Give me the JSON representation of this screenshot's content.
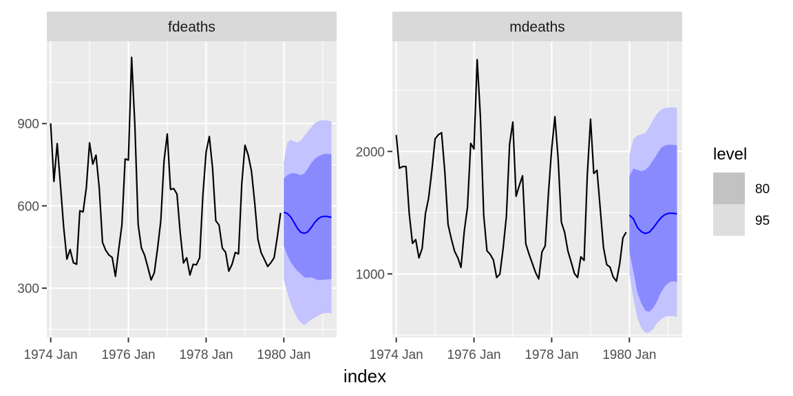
{
  "chart_data": {
    "type": "line",
    "xlabel": "index",
    "legend": {
      "title": "level",
      "position": "right",
      "entries": [
        {
          "label": "80",
          "color": "#c2c2c2"
        },
        {
          "label": "95",
          "color": "#dedede"
        }
      ]
    },
    "colors": {
      "history": "#000000",
      "forecast": "#0000ff",
      "band80": "#8a8aff",
      "band95": "#c3c3ff"
    },
    "history_start": "1974-01",
    "forecast_start": "1980-01",
    "panels": [
      {
        "strip": "fdeaths",
        "x_ticks": [
          "1974 Jan",
          "1976 Jan",
          "1978 Jan",
          "1980 Jan"
        ],
        "y_ticks": [
          300,
          600,
          900
        ],
        "ylim": [
          120,
          1200
        ],
        "history": [
          901,
          689,
          827,
          677,
          522,
          406,
          441,
          393,
          387,
          582,
          578,
          666,
          830,
          752,
          785,
          664,
          467,
          438,
          421,
          412,
          343,
          440,
          531,
          771,
          767,
          1141,
          896,
          532,
          447,
          420,
          376,
          330,
          357,
          445,
          546,
          764,
          862,
          660,
          663,
          643,
          502,
          392,
          411,
          348,
          387,
          385,
          411,
          638,
          796,
          853,
          737,
          546,
          530,
          446,
          431,
          362,
          387,
          430,
          425,
          679,
          821,
          785,
          727,
          612,
          478,
          429,
          405,
          379,
          393,
          411,
          487,
          574
        ],
        "forecast": {
          "mean": [
            577,
            572,
            560,
            540,
            518,
            504,
            500,
            505,
            520,
            538,
            552,
            560,
            562,
            561,
            558
          ],
          "lo80": [
            455,
            420,
            395,
            378,
            362,
            352,
            340,
            338,
            340,
            335,
            330,
            330,
            331,
            332,
            333
          ],
          "hi80": [
            700,
            712,
            718,
            720,
            716,
            712,
            718,
            735,
            755,
            770,
            780,
            785,
            790,
            790,
            788
          ],
          "lo95": [
            330,
            285,
            245,
            215,
            190,
            175,
            165,
            175,
            185,
            192,
            200,
            205,
            210,
            210,
            208
          ],
          "hi95": [
            760,
            830,
            842,
            835,
            832,
            838,
            855,
            870,
            885,
            900,
            908,
            912,
            912,
            910,
            908
          ]
        }
      },
      {
        "strip": "mdeaths",
        "x_ticks": [
          "1974 Jan",
          "1976 Jan",
          "1978 Jan",
          "1980 Jan"
        ],
        "y_ticks": [
          1000,
          2000
        ],
        "ylim": [
          480,
          2900
        ],
        "history": [
          2134,
          1863,
          1877,
          1877,
          1492,
          1249,
          1280,
          1131,
          1209,
          1492,
          1621,
          1846,
          2103,
          2137,
          2153,
          1833,
          1403,
          1288,
          1186,
          1133,
          1053,
          1347,
          1545,
          2066,
          2020,
          2750,
          2283,
          1479,
          1189,
          1160,
          1113,
          970,
          999,
          1208,
          1467,
          2059,
          2240,
          1634,
          1722,
          1801,
          1246,
          1162,
          1087,
          1013,
          959,
          1179,
          1229,
          1655,
          2019,
          2284,
          1942,
          1423,
          1340,
          1187,
          1098,
          1004,
          970,
          1140,
          1110,
          1812,
          2263,
          1820,
          1846,
          1531,
          1215,
          1075,
          1056,
          975,
          940,
          1081,
          1294,
          1341
        ],
        "forecast": {
          "mean": [
            1480,
            1450,
            1380,
            1345,
            1330,
            1340,
            1375,
            1420,
            1460,
            1485,
            1495,
            1495,
            1490
          ],
          "lo80": [
            1180,
            1020,
            850,
            760,
            700,
            690,
            720,
            780,
            850,
            900,
            930,
            940,
            935
          ],
          "hi80": [
            1800,
            1860,
            1850,
            1840,
            1850,
            1880,
            1930,
            1980,
            2030,
            2050,
            2055,
            2055,
            2050
          ],
          "lo95": [
            1000,
            800,
            640,
            560,
            520,
            520,
            550,
            600,
            630,
            650,
            655,
            655,
            650
          ],
          "hi95": [
            1970,
            2100,
            2130,
            2140,
            2150,
            2200,
            2260,
            2310,
            2340,
            2355,
            2360,
            2360,
            2355
          ]
        }
      }
    ]
  }
}
